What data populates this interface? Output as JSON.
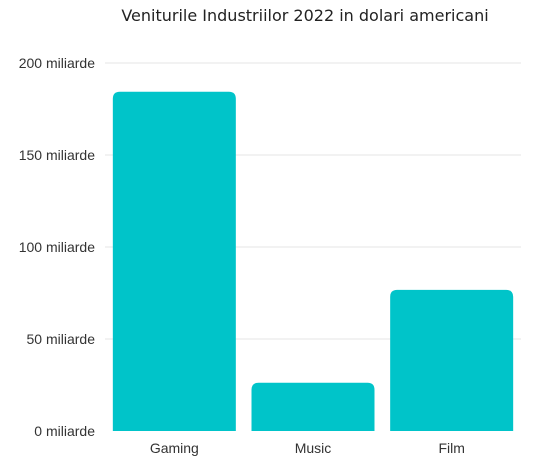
{
  "chart_data": {
    "type": "bar",
    "title": "Veniturile Industriilor 2022 in dolari americani",
    "xlabel": "",
    "ylabel": "",
    "categories": [
      "Gaming",
      "Music",
      "Film"
    ],
    "values": [
      184.4,
      26.2,
      76.7
    ],
    "ylim": [
      0,
      200
    ],
    "yticks": [
      0,
      50,
      100,
      150,
      200
    ],
    "ytick_labels": [
      "0 miliarde",
      "50 miliarde",
      "100 miliarde",
      "150 miliarde",
      "200 miliarde"
    ],
    "grid": true,
    "legend": "none",
    "bar_color": "#00c4c9"
  }
}
